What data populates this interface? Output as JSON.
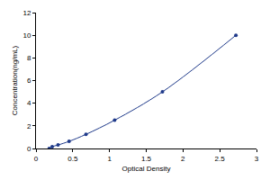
{
  "chart_data": {
    "type": "scatter",
    "x_label": "Optical Density",
    "y_label": "Concentration(ng/mL)",
    "x": [
      0.18,
      0.22,
      0.3,
      0.45,
      0.68,
      1.07,
      1.72,
      2.72
    ],
    "values": [
      0,
      0.16,
      0.31,
      0.63,
      1.25,
      2.5,
      5,
      10
    ],
    "color": "#1f3a8a",
    "marker": "circle",
    "line_style": "solid",
    "xlim": [
      0,
      3
    ],
    "xticks": [
      0,
      0.5,
      1,
      1.5,
      2,
      2.5,
      3
    ],
    "ylim": [
      0,
      12
    ],
    "yticks": [
      0,
      2,
      4,
      6,
      8,
      10,
      12
    ],
    "grid": false
  }
}
